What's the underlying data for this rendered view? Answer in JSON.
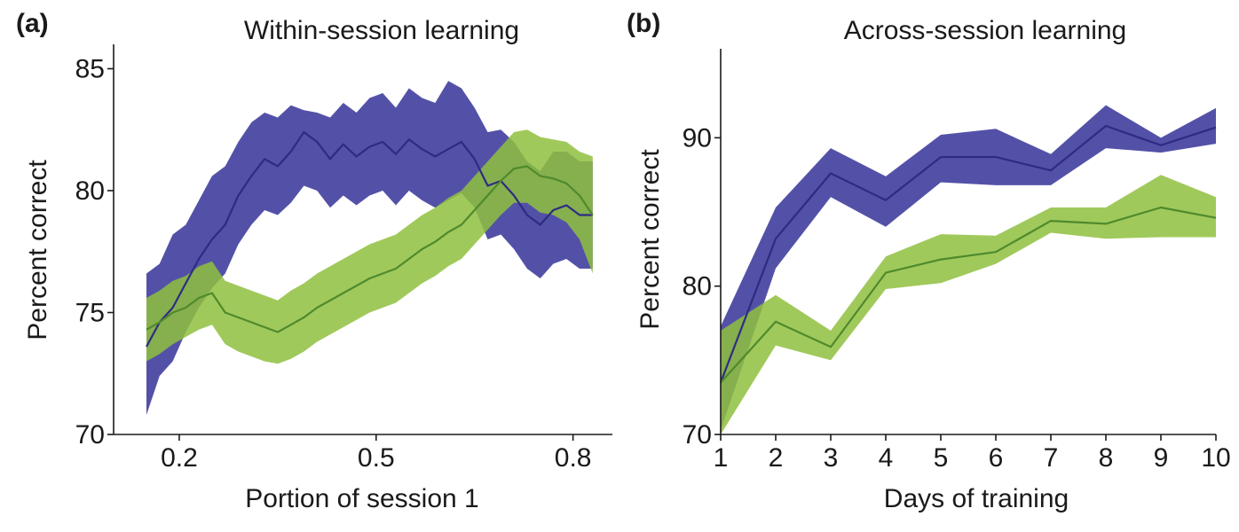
{
  "panels": [
    {
      "label": "(a)",
      "title": "Within-session learning"
    },
    {
      "label": "(b)",
      "title": "Across-session learning"
    }
  ],
  "colors": {
    "blue_band": "#4a48a2",
    "blue_line": "#2e2c82",
    "green_band": "#8fbf3e",
    "green_line": "#4f8a2c"
  },
  "chart_data": [
    {
      "type": "line",
      "title": "Within-session learning",
      "xlabel": "Portion of session 1",
      "ylabel": "Percent correct",
      "xlim": [
        0.1,
        0.86
      ],
      "ylim": [
        70,
        86
      ],
      "xticks": [
        0.2,
        0.5,
        0.8
      ],
      "xtick_labels": [
        "0.2",
        "0.5",
        "0.8"
      ],
      "yticks": [
        70,
        75,
        80,
        85
      ],
      "ytick_labels": [
        "70",
        "75",
        "80",
        "85"
      ],
      "grid": false,
      "legend": "none",
      "series": [
        {
          "color": "blue",
          "x": [
            0.15,
            0.17,
            0.19,
            0.21,
            0.23,
            0.25,
            0.27,
            0.29,
            0.31,
            0.33,
            0.35,
            0.37,
            0.39,
            0.41,
            0.43,
            0.45,
            0.47,
            0.49,
            0.51,
            0.53,
            0.55,
            0.57,
            0.59,
            0.61,
            0.63,
            0.65,
            0.67,
            0.69,
            0.71,
            0.73,
            0.75,
            0.77,
            0.79,
            0.81,
            0.83
          ],
          "y": [
            73.6,
            74.6,
            75.2,
            76.2,
            77.2,
            78.0,
            78.6,
            79.8,
            80.6,
            81.3,
            81.0,
            81.6,
            82.4,
            82.0,
            81.3,
            81.9,
            81.4,
            81.8,
            82.0,
            81.5,
            82.1,
            81.7,
            81.4,
            81.7,
            82.0,
            81.3,
            80.2,
            80.4,
            79.8,
            79.0,
            78.6,
            79.2,
            79.4,
            79.0,
            79.0
          ],
          "lower": [
            70.8,
            72.4,
            73.0,
            74.2,
            75.2,
            76.0,
            76.6,
            77.8,
            78.6,
            79.2,
            79.0,
            79.5,
            80.2,
            80.0,
            79.3,
            79.8,
            79.4,
            79.8,
            80.0,
            79.4,
            80.0,
            79.6,
            79.3,
            79.6,
            79.9,
            79.3,
            78.0,
            78.2,
            77.6,
            76.8,
            76.4,
            77.0,
            77.2,
            76.8,
            76.8
          ],
          "upper": [
            76.6,
            77.0,
            78.2,
            78.6,
            79.6,
            80.6,
            81.0,
            82.0,
            82.8,
            83.2,
            83.0,
            83.5,
            83.3,
            83.2,
            83.0,
            83.6,
            83.2,
            83.8,
            84.0,
            83.4,
            84.2,
            83.8,
            83.6,
            84.5,
            84.2,
            83.4,
            82.4,
            82.5,
            82.0,
            81.2,
            80.8,
            81.6,
            81.6,
            81.2,
            81.2
          ]
        },
        {
          "color": "green",
          "x": [
            0.15,
            0.17,
            0.19,
            0.21,
            0.23,
            0.25,
            0.27,
            0.29,
            0.31,
            0.33,
            0.35,
            0.37,
            0.39,
            0.41,
            0.43,
            0.45,
            0.47,
            0.49,
            0.51,
            0.53,
            0.55,
            0.57,
            0.59,
            0.61,
            0.63,
            0.65,
            0.67,
            0.69,
            0.71,
            0.73,
            0.75,
            0.77,
            0.79,
            0.81,
            0.83
          ],
          "y": [
            74.3,
            74.6,
            75.0,
            75.2,
            75.6,
            75.8,
            75.0,
            74.8,
            74.6,
            74.4,
            74.2,
            74.5,
            74.8,
            75.2,
            75.5,
            75.8,
            76.1,
            76.4,
            76.6,
            76.8,
            77.2,
            77.6,
            77.9,
            78.3,
            78.6,
            79.2,
            79.8,
            80.4,
            80.9,
            81.0,
            80.6,
            80.5,
            80.3,
            79.8,
            79.0
          ],
          "lower": [
            73.0,
            73.3,
            73.7,
            74.0,
            74.3,
            74.5,
            73.7,
            73.4,
            73.2,
            73.0,
            72.9,
            73.1,
            73.4,
            73.8,
            74.1,
            74.4,
            74.7,
            75.0,
            75.2,
            75.4,
            75.8,
            76.2,
            76.5,
            76.9,
            77.2,
            77.8,
            78.4,
            79.0,
            79.5,
            79.5,
            79.1,
            79.0,
            78.7,
            78.0,
            76.6
          ],
          "upper": [
            75.6,
            75.9,
            76.3,
            76.5,
            76.9,
            77.1,
            76.3,
            76.1,
            75.9,
            75.7,
            75.5,
            75.9,
            76.2,
            76.6,
            76.9,
            77.2,
            77.5,
            77.8,
            78.0,
            78.2,
            78.6,
            79.0,
            79.3,
            79.7,
            80.0,
            80.6,
            81.2,
            81.8,
            82.4,
            82.5,
            82.2,
            82.1,
            82.0,
            81.6,
            81.4
          ]
        }
      ]
    },
    {
      "type": "line",
      "title": "Across-session learning",
      "xlabel": "Days of training",
      "ylabel": "Percent correct",
      "xlim": [
        1,
        10
      ],
      "ylim": [
        70,
        96
      ],
      "xticks": [
        1,
        2,
        3,
        4,
        5,
        6,
        7,
        8,
        9,
        10
      ],
      "xtick_labels": [
        "1",
        "2",
        "3",
        "4",
        "5",
        "6",
        "7",
        "8",
        "9",
        "10"
      ],
      "yticks": [
        70,
        80,
        90
      ],
      "ytick_labels": [
        "70",
        "80",
        "90"
      ],
      "grid": false,
      "legend": "none",
      "series": [
        {
          "color": "blue",
          "x": [
            1,
            2,
            3,
            4,
            5,
            6,
            7,
            8,
            9,
            10
          ],
          "y": [
            73.5,
            83.2,
            87.6,
            85.8,
            88.7,
            88.7,
            87.8,
            90.8,
            89.5,
            90.7
          ],
          "lower": [
            70.3,
            81.2,
            86.0,
            84.0,
            87.0,
            86.8,
            86.8,
            89.3,
            89.0,
            89.6
          ],
          "upper": [
            77.3,
            85.3,
            89.3,
            87.4,
            90.2,
            90.6,
            88.9,
            92.2,
            90.0,
            92.0
          ]
        },
        {
          "color": "green",
          "x": [
            1,
            2,
            3,
            4,
            5,
            6,
            7,
            8,
            9,
            10
          ],
          "y": [
            73.5,
            77.6,
            75.9,
            80.9,
            81.8,
            82.3,
            84.4,
            84.2,
            85.3,
            84.6
          ],
          "lower": [
            70.0,
            76.0,
            75.0,
            79.8,
            80.2,
            81.5,
            83.6,
            83.2,
            83.3,
            83.3
          ],
          "upper": [
            77.0,
            79.4,
            77.0,
            82.0,
            83.5,
            83.4,
            85.3,
            85.3,
            87.5,
            86.0
          ]
        }
      ]
    }
  ]
}
